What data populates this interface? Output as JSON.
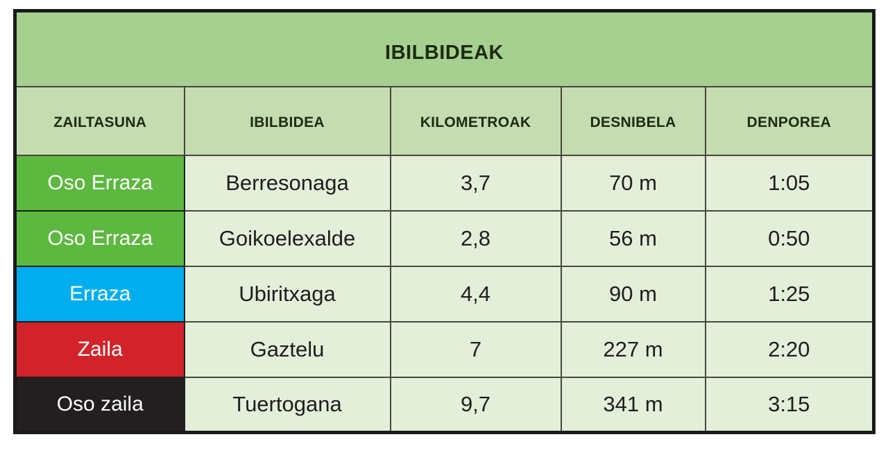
{
  "table": {
    "title": "Ibilbideak",
    "columns": [
      {
        "label": "Zailtasuna"
      },
      {
        "label": "Ibilbidea"
      },
      {
        "label": "Kilometroak"
      },
      {
        "label": "Desnibela"
      },
      {
        "label": "Denporea"
      }
    ],
    "rows": [
      {
        "difficulty": "Oso Erraza",
        "difficulty_color": "#5cb83e",
        "route": "Berresonaga",
        "kilometers": "3,7",
        "elevation": "70 m",
        "time": "1:05"
      },
      {
        "difficulty": "Oso Erraza",
        "difficulty_color": "#5cb83e",
        "route": "Goikoelexalde",
        "kilometers": "2,8",
        "elevation": "56 m",
        "time": "0:50"
      },
      {
        "difficulty": "Erraza",
        "difficulty_color": "#00aeef",
        "route": "Ubiritxaga",
        "kilometers": "4,4",
        "elevation": "90 m",
        "time": "1:25"
      },
      {
        "difficulty": "Zaila",
        "difficulty_color": "#d2232a",
        "route": "Gaztelu",
        "kilometers": "7",
        "elevation": "227 m",
        "time": "2:20"
      },
      {
        "difficulty": "Oso zaila",
        "difficulty_color": "#231f20",
        "route": "Tuertogana",
        "kilometers": "9,7",
        "elevation": "341 m",
        "time": "3:15"
      }
    ]
  },
  "colors": {
    "title_bg": "#a5d08f",
    "header_bg": "#c5dcb1",
    "cell_bg": "#e4efda",
    "border_outer": "#1a1a1a",
    "border_inner": "#45483c",
    "header_text": "#1c2b12",
    "cell_text": "#1e1e1e",
    "difficulty_text": "#ffffff",
    "difficulty_very_easy": "#5cb83e",
    "difficulty_easy": "#00aeef",
    "difficulty_hard": "#d2232a",
    "difficulty_very_hard": "#231f20"
  }
}
